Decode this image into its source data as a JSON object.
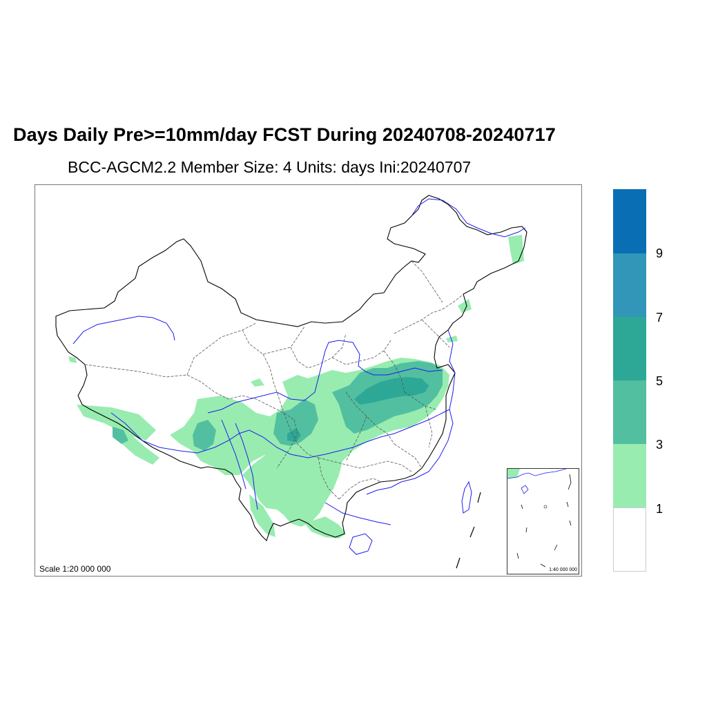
{
  "title": "Days Daily Pre>=10mm/day  FCST During  20240708-20240717",
  "subtitle": "BCC-AGCM2.2   Member Size: 4   Units: days  Ini:20240707",
  "map": {
    "scale_label": "Scale 1:20 000 000",
    "inset_scale_label": "1:40 000 000",
    "border_color": "#000000",
    "river_color": "#1c1cf0",
    "province_color": "#555555"
  },
  "legend": {
    "bins": [
      {
        "range": "below 1",
        "color": "#ffffff"
      },
      {
        "range": "1-3",
        "color": "#98ecb0"
      },
      {
        "range": "3-5",
        "color": "#52bfa0"
      },
      {
        "range": "5-7",
        "color": "#2ea896"
      },
      {
        "range": "7-9",
        "color": "#3196b8"
      },
      {
        "range": "above 9",
        "color": "#0a6eb4"
      }
    ],
    "tick_labels": [
      "1",
      "3",
      "5",
      "7",
      "9"
    ]
  }
}
